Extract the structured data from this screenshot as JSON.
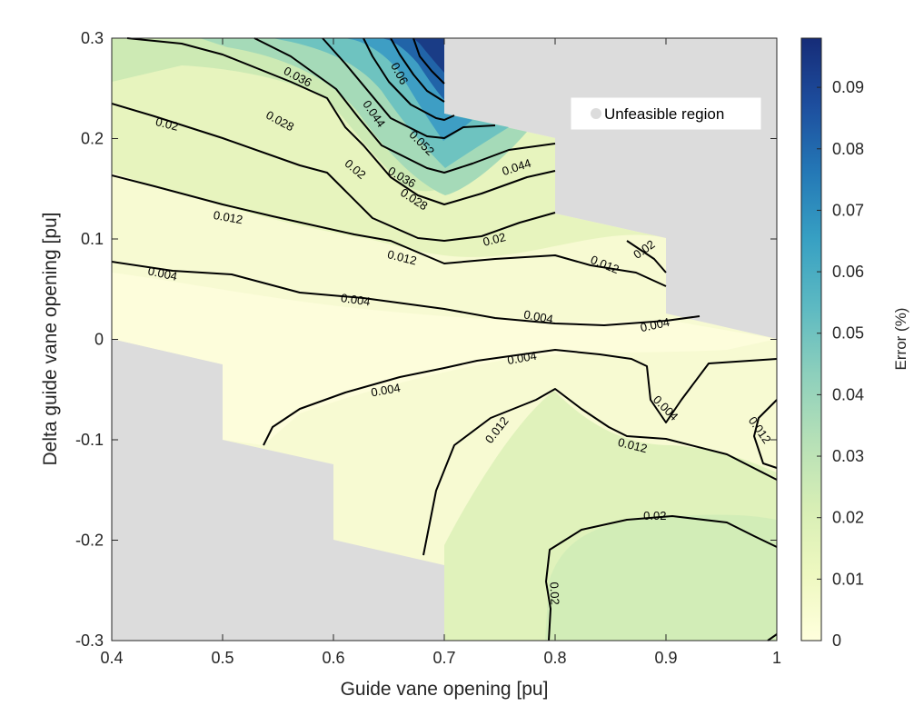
{
  "chart_data": {
    "type": "contour",
    "xlabel": "Guide vane opening [pu]",
    "ylabel": "Delta guide vane opening [pu]",
    "xlim": [
      0.4,
      1.0
    ],
    "ylim": [
      -0.3,
      0.3
    ],
    "xticks": [
      "0.4",
      "0.5",
      "0.6",
      "0.7",
      "0.8",
      "0.9",
      "1"
    ],
    "yticks": [
      "-0.3",
      "-0.2",
      "-0.1",
      "0",
      "0.1",
      "0.2",
      "0.3"
    ],
    "colorbar": {
      "label": "Error (%)",
      "range": [
        0,
        0.098
      ],
      "ticks": [
        "0",
        "0.01",
        "0.02",
        "0.03",
        "0.04",
        "0.05",
        "0.06",
        "0.07",
        "0.08",
        "0.09"
      ],
      "colormap": [
        "#FFFFDD",
        "#EEF8C0",
        "#D7EEB5",
        "#B5E0B7",
        "#8CCFBC",
        "#5CB9C2",
        "#37A0C3",
        "#2478B6",
        "#1D4E9E",
        "#162C78"
      ]
    },
    "legend": {
      "label": "Unfeasible region",
      "placement": "top-right",
      "color": "#dcdcdc"
    },
    "contour_levels": [
      0.004,
      0.012,
      0.02,
      0.028,
      0.036,
      0.044,
      0.052,
      0.06
    ],
    "contour_labels": [
      {
        "text": "0.036",
        "x": 0.568,
        "y": 0.262,
        "rot": 28
      },
      {
        "text": "0.06",
        "x": 0.66,
        "y": 0.265,
        "rot": 62
      },
      {
        "text": "0.028",
        "x": 0.552,
        "y": 0.218,
        "rot": 28
      },
      {
        "text": "0.044",
        "x": 0.637,
        "y": 0.225,
        "rot": 55
      },
      {
        "text": "0.052",
        "x": 0.68,
        "y": 0.196,
        "rot": 45
      },
      {
        "text": "0.02",
        "x": 0.45,
        "y": 0.215,
        "rot": 14
      },
      {
        "text": "0.02",
        "x": 0.62,
        "y": 0.17,
        "rot": 40
      },
      {
        "text": "0.044",
        "x": 0.765,
        "y": 0.172,
        "rot": -18
      },
      {
        "text": "0.036",
        "x": 0.662,
        "y": 0.162,
        "rot": 30
      },
      {
        "text": "0.028",
        "x": 0.673,
        "y": 0.14,
        "rot": 33
      },
      {
        "text": "0.012",
        "x": 0.505,
        "y": 0.122,
        "rot": 10
      },
      {
        "text": "0.02",
        "x": 0.745,
        "y": 0.1,
        "rot": -14
      },
      {
        "text": "0.02",
        "x": 0.88,
        "y": 0.09,
        "rot": -35
      },
      {
        "text": "0.012",
        "x": 0.662,
        "y": 0.082,
        "rot": 14
      },
      {
        "text": "0.012",
        "x": 0.845,
        "y": 0.075,
        "rot": 22
      },
      {
        "text": "0.004",
        "x": 0.446,
        "y": 0.066,
        "rot": 12
      },
      {
        "text": "0.004",
        "x": 0.62,
        "y": 0.04,
        "rot": 8
      },
      {
        "text": "0.004",
        "x": 0.785,
        "y": 0.023,
        "rot": 10
      },
      {
        "text": "0.004",
        "x": 0.89,
        "y": 0.015,
        "rot": -12
      },
      {
        "text": "0.004",
        "x": 0.77,
        "y": -0.018,
        "rot": -10
      },
      {
        "text": "0.004",
        "x": 0.647,
        "y": -0.05,
        "rot": -10
      },
      {
        "text": "0.004",
        "x": 0.9,
        "y": -0.068,
        "rot": 45
      },
      {
        "text": "0.012",
        "x": 0.747,
        "y": -0.09,
        "rot": -52
      },
      {
        "text": "0.012",
        "x": 0.87,
        "y": -0.105,
        "rot": 14
      },
      {
        "text": "0.012",
        "x": 0.985,
        "y": -0.09,
        "rot": 55
      },
      {
        "text": "0.02",
        "x": 0.89,
        "y": -0.175,
        "rot": 0
      },
      {
        "text": "0.02",
        "x": 0.8,
        "y": -0.253,
        "rot": 87
      }
    ]
  }
}
